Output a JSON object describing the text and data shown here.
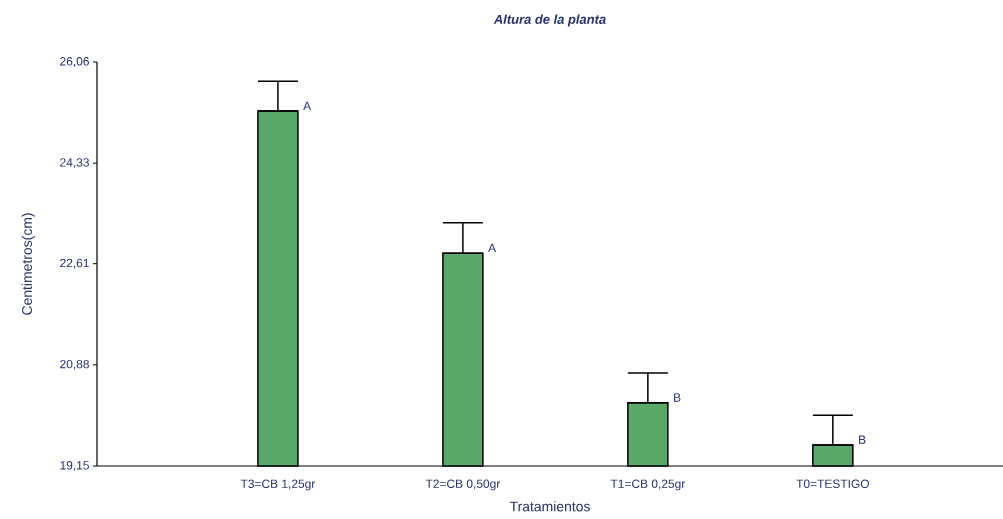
{
  "chart_data": {
    "type": "bar",
    "title": "Altura de la planta",
    "xlabel": "Tratamientos",
    "ylabel": "Centimetros(cm)",
    "categories": [
      "T3=CB 1,25gr",
      "T2=CB 0,50gr",
      "T1=CB 0,25gr",
      "T0=TESTIGO"
    ],
    "values": [
      25.22,
      22.79,
      20.23,
      19.51
    ],
    "errors": [
      [
        25.22,
        25.73
      ],
      [
        22.79,
        23.31
      ],
      [
        20.23,
        20.74
      ],
      [
        19.51,
        20.02
      ]
    ],
    "color": "#5aa86a",
    "ylim": [
      19.15,
      26.06
    ],
    "yticks": [
      {
        "value": 19.15,
        "label": "19,15"
      },
      {
        "value": 20.88,
        "label": "20,88"
      },
      {
        "value": 22.61,
        "label": "22,61"
      },
      {
        "value": 24.33,
        "label": "24,33"
      },
      {
        "value": 26.06,
        "label": "26,06"
      }
    ],
    "grid": false,
    "annotations": [
      {
        "text": "A",
        "x": "T3=CB 1,25gr",
        "y": 25.22
      },
      {
        "text": "A",
        "x": "T2=CB 0,50gr",
        "y": 22.79
      },
      {
        "text": "B",
        "x": "T1=CB 0,25gr",
        "y": 20.23
      },
      {
        "text": "B",
        "x": "T0=TESTIGO",
        "y": 19.51
      }
    ]
  }
}
